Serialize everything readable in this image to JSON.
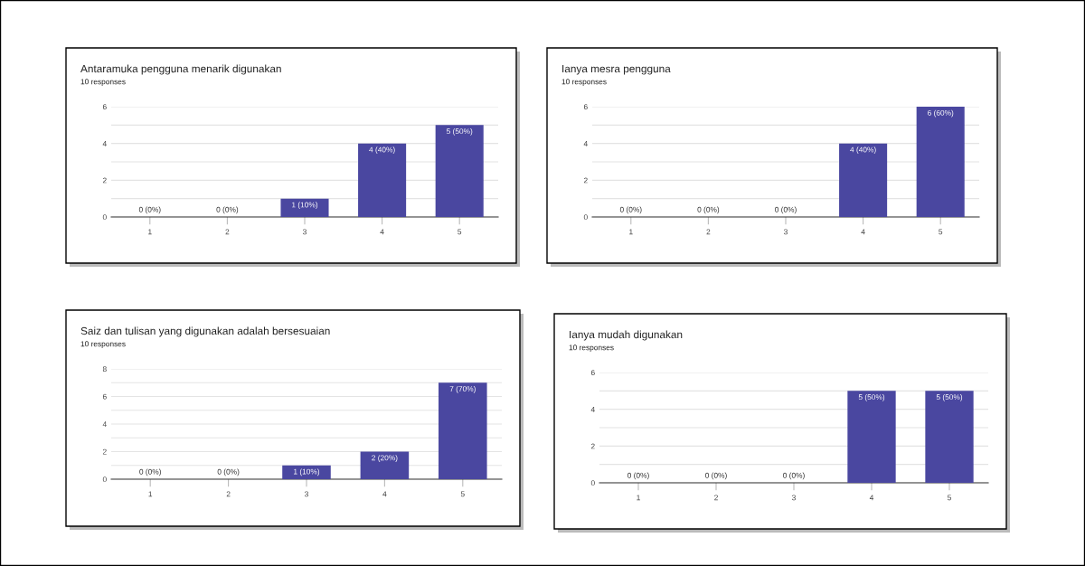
{
  "chart_data": [
    {
      "type": "bar",
      "title": "Antaramuka pengguna menarik digunakan",
      "subtitle": "10 responses",
      "categories": [
        "1",
        "2",
        "3",
        "4",
        "5"
      ],
      "values": [
        0,
        0,
        1,
        4,
        5
      ],
      "value_labels": [
        "0 (0%)",
        "0 (0%)",
        "1 (10%)",
        "4 (40%)",
        "5 (50%)"
      ],
      "color": "#4a47a0",
      "ylim": [
        0,
        6
      ],
      "yticks": [
        0,
        {
          "value": 1,
          "label": null
        },
        2,
        {
          "value": 3,
          "label": null
        },
        4,
        {
          "value": 5,
          "label": null
        },
        6
      ],
      "grid": "y"
    },
    {
      "type": "bar",
      "title": "Ianya mesra pengguna",
      "subtitle": "10 responses",
      "categories": [
        "1",
        "2",
        "3",
        "4",
        "5"
      ],
      "values": [
        0,
        0,
        0,
        4,
        6
      ],
      "value_labels": [
        "0 (0%)",
        "0 (0%)",
        "0 (0%)",
        "4 (40%)",
        "6 (60%)"
      ],
      "color": "#4a47a0",
      "ylim": [
        0,
        6
      ],
      "yticks": [
        0,
        {
          "value": 1,
          "label": null
        },
        2,
        {
          "value": 3,
          "label": null
        },
        4,
        {
          "value": 5,
          "label": null
        },
        6
      ],
      "grid": "y"
    },
    {
      "type": "bar",
      "title": "Saiz dan tulisan yang digunakan adalah bersesuaian",
      "subtitle": "10 responses",
      "categories": [
        "1",
        "2",
        "3",
        "4",
        "5"
      ],
      "values": [
        0,
        0,
        1,
        2,
        7
      ],
      "value_labels": [
        "0 (0%)",
        "0 (0%)",
        "1 (10%)",
        "2 (20%)",
        "7 (70%)"
      ],
      "color": "#4a47a0",
      "ylim": [
        0,
        8
      ],
      "yticks": [
        0,
        {
          "value": 1,
          "label": null
        },
        2,
        {
          "value": 3,
          "label": null
        },
        4,
        {
          "value": 5,
          "label": null
        },
        6,
        {
          "value": 7,
          "label": null
        },
        8
      ],
      "grid": "y"
    },
    {
      "type": "bar",
      "title": "Ianya mudah digunakan",
      "subtitle": "10 responses",
      "categories": [
        "1",
        "2",
        "3",
        "4",
        "5"
      ],
      "values": [
        0,
        0,
        0,
        5,
        5
      ],
      "value_labels": [
        "0 (0%)",
        "0 (0%)",
        "0 (0%)",
        "5 (50%)",
        "5 (50%)"
      ],
      "color": "#4a47a0",
      "ylim": [
        0,
        6
      ],
      "yticks": [
        0,
        {
          "value": 1,
          "label": null
        },
        2,
        {
          "value": 3,
          "label": null
        },
        4,
        {
          "value": 5,
          "label": null
        },
        6
      ],
      "grid": "y"
    }
  ]
}
